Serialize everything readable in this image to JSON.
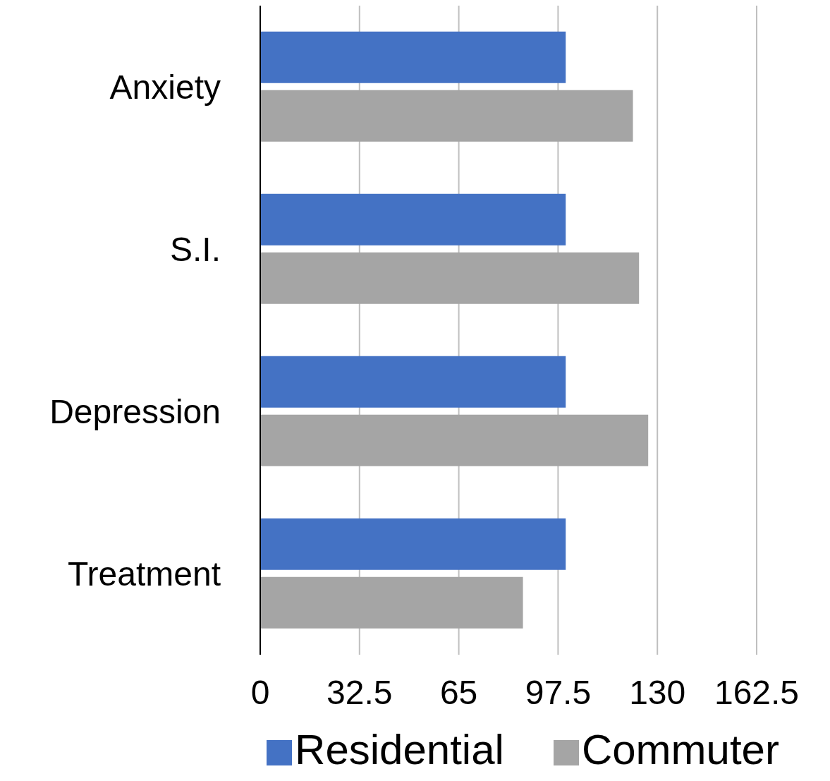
{
  "chart_data": {
    "type": "bar",
    "orientation": "horizontal",
    "categories": [
      "Anxiety",
      "S.I.",
      "Depression",
      "Treatment"
    ],
    "series": [
      {
        "name": "Residential",
        "color": "#4472c4",
        "values": [
          100,
          100,
          100,
          100
        ]
      },
      {
        "name": "Commuter",
        "color": "#a5a5a5",
        "values": [
          122,
          124,
          127,
          86
        ]
      }
    ],
    "xlim": [
      0,
      162.5
    ],
    "xticks": [
      0,
      32.5,
      65,
      97.5,
      130,
      162.5
    ],
    "grid": "x",
    "legend": "bottom"
  }
}
